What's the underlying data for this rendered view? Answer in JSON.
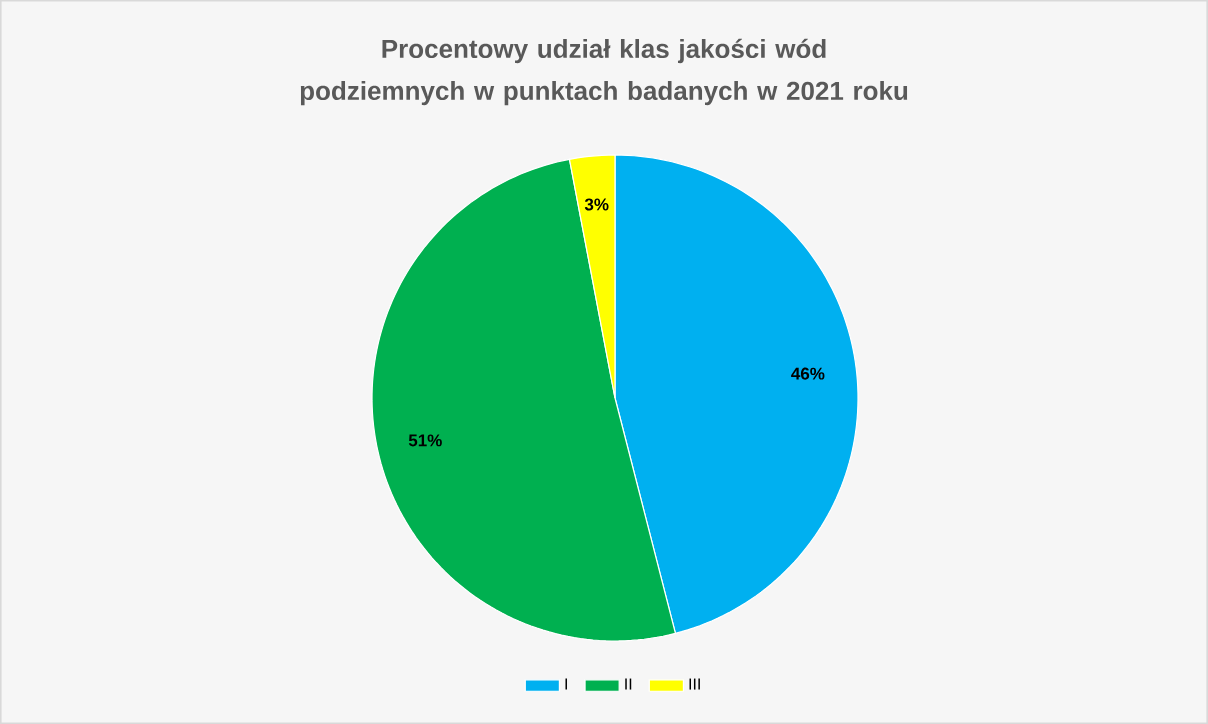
{
  "chart_data": {
    "type": "pie",
    "title": "Procentowy udział klas jakości wód podziemnych w punktach badanych w 2021 roku",
    "categories": [
      "I",
      "II",
      "III"
    ],
    "values": [
      46,
      51,
      3
    ],
    "colors": [
      "#00b0f0",
      "#00b050",
      "#ffff00"
    ],
    "value_labels": [
      "46%",
      "51%",
      "3%"
    ],
    "legend": "bottom"
  }
}
